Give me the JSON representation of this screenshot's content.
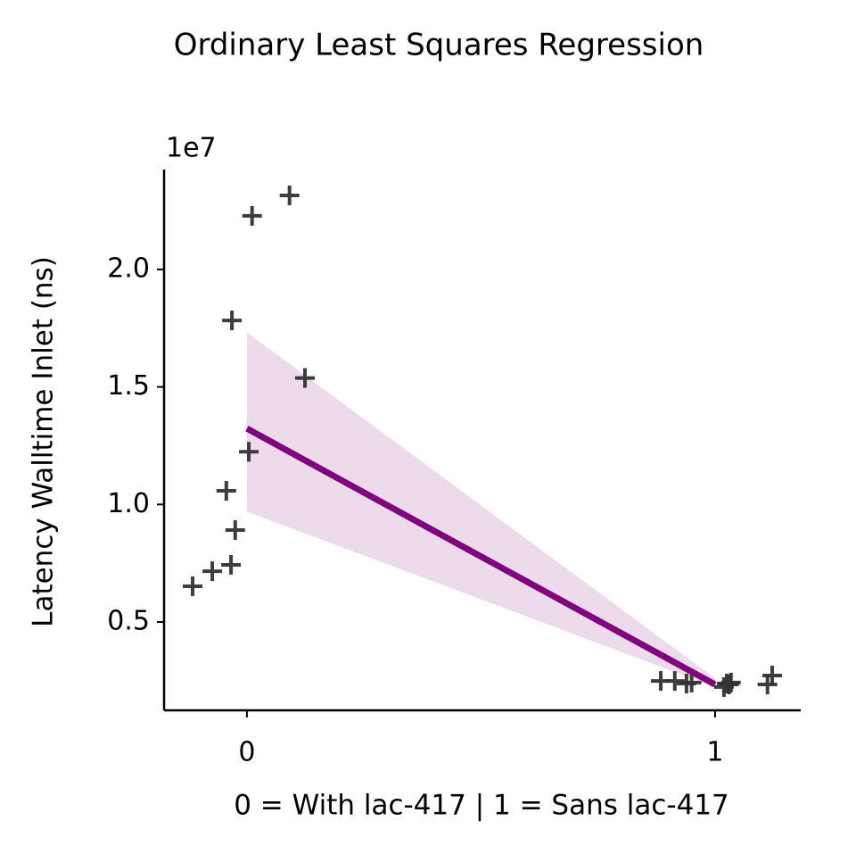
{
  "chart_data": {
    "type": "scatter",
    "title": "Ordinary Least Squares Regression",
    "xlabel": "0 = With lac-417 | 1 = Sans lac-417",
    "ylabel": "Latency Walltime Inlet (ns)",
    "y_offset_label": "1e7",
    "xlim": [
      -0.177,
      1.183
    ],
    "ylim": [
      1240000,
      24250000
    ],
    "xticks": [
      0,
      1
    ],
    "yticks": [
      {
        "value": 5000000,
        "label": "0.5"
      },
      {
        "value": 10000000,
        "label": "1.0"
      },
      {
        "value": 15000000,
        "label": "1.5"
      },
      {
        "value": 20000000,
        "label": "2.0"
      }
    ],
    "points": {
      "color": "#333333",
      "x": [
        -0.116,
        -0.074,
        -0.034,
        -0.025,
        -0.044,
        0.004,
        -0.032,
        0.124,
        0.011,
        0.091,
        0.884,
        0.914,
        0.939,
        0.95,
        1.025,
        1.03,
        1.019,
        1.112,
        1.122,
        1.034
      ],
      "y": [
        6520000,
        7160000,
        7430000,
        8910000,
        10580000,
        12240000,
        17830000,
        15380000,
        22280000,
        23150000,
        2490000,
        2490000,
        2380000,
        2420000,
        2380000,
        2340000,
        2230000,
        2340000,
        2720000,
        2420000
      ]
    },
    "fit": {
      "color": "#800080",
      "band_color": "#eddaeb",
      "x": [
        0,
        1
      ],
      "y": [
        13230000,
        2340000
      ],
      "upper": [
        17320000,
        2600000
      ],
      "lower": [
        9700000,
        2230000
      ]
    }
  }
}
